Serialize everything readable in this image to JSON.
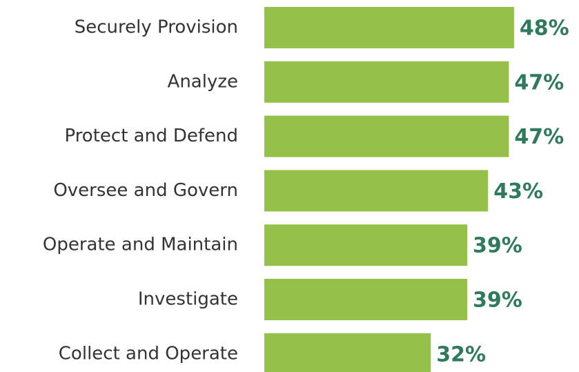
{
  "chart_data": {
    "type": "bar",
    "orientation": "horizontal",
    "categories": [
      "Securely Provision",
      "Analyze",
      "Protect and Defend",
      "Oversee and Govern",
      "Operate and Maintain",
      "Investigate",
      "Collect and Operate"
    ],
    "values": [
      48,
      47,
      47,
      43,
      39,
      39,
      32
    ],
    "value_labels": [
      "48%",
      "47%",
      "47%",
      "43%",
      "39%",
      "39%",
      "32%"
    ],
    "color": "#95c14b",
    "label_color": "#2e7a5b"
  }
}
